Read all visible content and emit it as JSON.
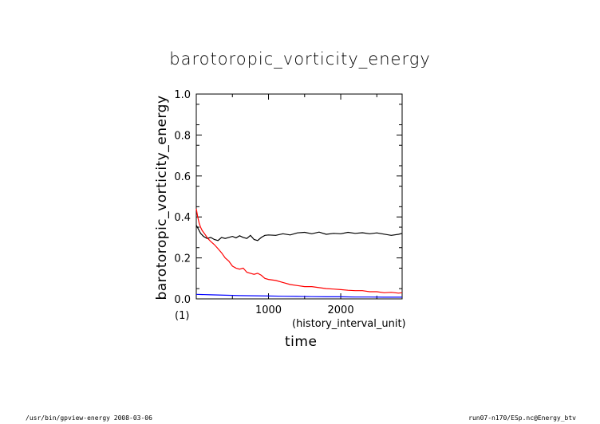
{
  "chart_data": {
    "type": "line",
    "title": "barotoropic_vorticity_energy",
    "ylabel": "barotoropic_vorticity_energy",
    "xlabel": "time",
    "x_unit": "(history_interval_unit)",
    "y_unit": "(1)",
    "xlim": [
      0,
      2850
    ],
    "ylim": [
      0,
      1.0
    ],
    "x_ticks": [
      1000,
      2000
    ],
    "y_ticks": [
      0.0,
      0.2,
      0.4,
      0.6,
      0.8,
      1.0
    ],
    "y_tick_labels": [
      "0.0",
      "0.2",
      "0.4",
      "0.6",
      "0.8",
      "1.0"
    ],
    "x_tick_labels": [
      "1000",
      "2000"
    ],
    "grid": false,
    "series": [
      {
        "color": "#000000",
        "x": [
          0,
          30,
          60,
          100,
          150,
          200,
          250,
          300,
          350,
          400,
          450,
          500,
          550,
          600,
          650,
          700,
          750,
          800,
          850,
          900,
          950,
          1000,
          1100,
          1200,
          1300,
          1400,
          1500,
          1600,
          1700,
          1800,
          1900,
          2000,
          2100,
          2200,
          2300,
          2400,
          2500,
          2600,
          2700,
          2800,
          2850
        ],
        "y": [
          0.36,
          0.34,
          0.32,
          0.305,
          0.295,
          0.3,
          0.29,
          0.285,
          0.3,
          0.295,
          0.3,
          0.305,
          0.298,
          0.308,
          0.3,
          0.295,
          0.31,
          0.29,
          0.285,
          0.3,
          0.31,
          0.312,
          0.31,
          0.318,
          0.312,
          0.322,
          0.325,
          0.318,
          0.326,
          0.315,
          0.32,
          0.318,
          0.325,
          0.32,
          0.323,
          0.318,
          0.322,
          0.316,
          0.31,
          0.315,
          0.32
        ]
      },
      {
        "color": "#ff0000",
        "x": [
          0,
          20,
          40,
          60,
          80,
          100,
          130,
          160,
          200,
          250,
          300,
          350,
          400,
          450,
          500,
          550,
          600,
          650,
          700,
          750,
          800,
          850,
          900,
          950,
          1000,
          1100,
          1200,
          1300,
          1400,
          1500,
          1600,
          1700,
          1800,
          1900,
          2000,
          2100,
          2200,
          2300,
          2400,
          2500,
          2600,
          2700,
          2800,
          2850
        ],
        "y": [
          0.44,
          0.4,
          0.37,
          0.35,
          0.335,
          0.325,
          0.31,
          0.295,
          0.28,
          0.265,
          0.245,
          0.225,
          0.2,
          0.185,
          0.16,
          0.15,
          0.145,
          0.15,
          0.13,
          0.125,
          0.12,
          0.125,
          0.115,
          0.1,
          0.095,
          0.09,
          0.08,
          0.07,
          0.065,
          0.06,
          0.06,
          0.055,
          0.05,
          0.048,
          0.045,
          0.042,
          0.04,
          0.04,
          0.035,
          0.035,
          0.03,
          0.032,
          0.028,
          0.03
        ]
      },
      {
        "color": "#0000ff",
        "x": [
          0,
          200,
          400,
          600,
          800,
          1000,
          1200,
          1400,
          1600,
          1800,
          2000,
          2200,
          2400,
          2600,
          2850
        ],
        "y": [
          0.022,
          0.02,
          0.018,
          0.016,
          0.015,
          0.014,
          0.013,
          0.012,
          0.011,
          0.01,
          0.01,
          0.009,
          0.009,
          0.008,
          0.008
        ]
      }
    ]
  },
  "footer": {
    "left": "/usr/bin/gpview-energy  2008-03-06",
    "right": "run07-n170/ESp.nc@Energy_btv"
  }
}
